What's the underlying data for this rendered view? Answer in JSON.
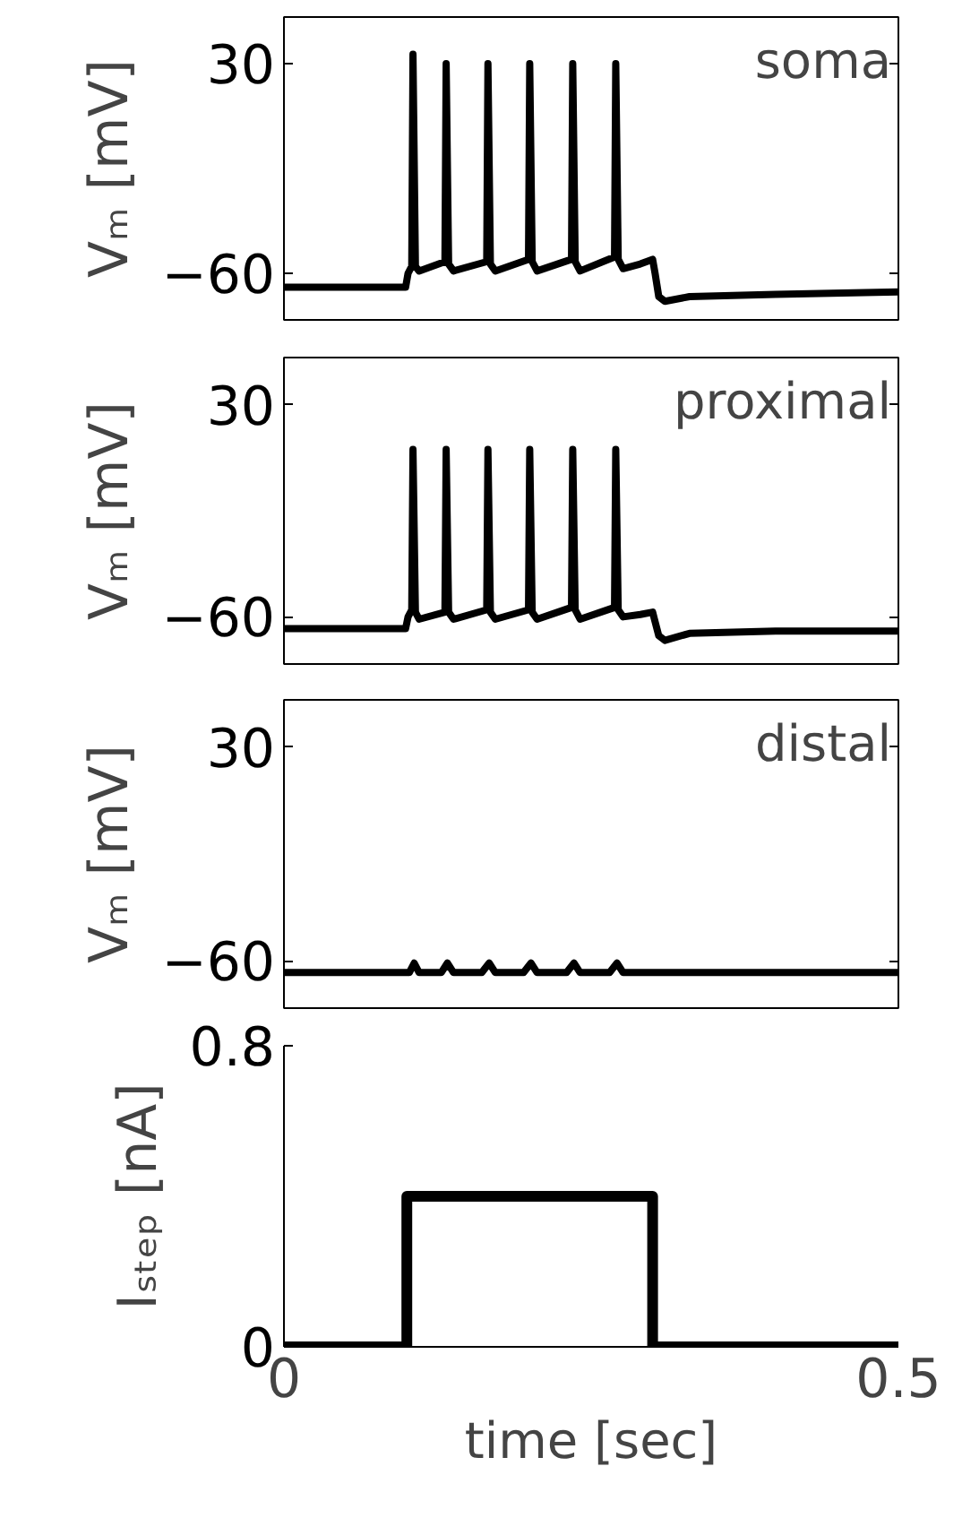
{
  "chart_data": [
    {
      "type": "line",
      "ylabel": "Vₘ [mV]",
      "annotations": [
        "soma"
      ],
      "xlim": [
        0,
        0.5
      ],
      "ylim": [
        -80,
        50
      ],
      "yticks": [
        -60,
        30
      ],
      "tick_labels": "y",
      "x": [
        0,
        0.099,
        0.101,
        0.104,
        0.105,
        0.107,
        0.11,
        0.131,
        0.132,
        0.134,
        0.138,
        0.165,
        0.166,
        0.168,
        0.172,
        0.199,
        0.2,
        0.202,
        0.206,
        0.234,
        0.235,
        0.237,
        0.241,
        0.269,
        0.27,
        0.272,
        0.276,
        0.29,
        0.3,
        0.302,
        0.305,
        0.31,
        0.33,
        0.4,
        0.5
      ],
      "series": [
        {
          "color": "#000000",
          "values": [
            -66,
            -66,
            -60,
            -57,
            34,
            -57,
            -59,
            -55,
            30,
            -56,
            -59,
            -55,
            30,
            -56,
            -59,
            -54,
            30,
            -55,
            -59,
            -54,
            30,
            -55,
            -59,
            -53,
            30,
            -54,
            -58,
            -56,
            -54,
            -60,
            -70,
            -72,
            -70,
            -69,
            -68
          ]
        }
      ]
    },
    {
      "type": "line",
      "ylabel": "Vₘ [mV]",
      "annotations": [
        "proximal"
      ],
      "xlim": [
        0,
        0.5
      ],
      "ylim": [
        -80,
        50
      ],
      "yticks": [
        -60,
        30
      ],
      "tick_labels": "y",
      "x": [
        0,
        0.099,
        0.101,
        0.104,
        0.105,
        0.107,
        0.11,
        0.131,
        0.132,
        0.134,
        0.138,
        0.165,
        0.166,
        0.168,
        0.172,
        0.199,
        0.2,
        0.202,
        0.206,
        0.234,
        0.235,
        0.237,
        0.241,
        0.269,
        0.27,
        0.272,
        0.276,
        0.29,
        0.3,
        0.302,
        0.305,
        0.31,
        0.33,
        0.4,
        0.5
      ],
      "series": [
        {
          "color": "#000000",
          "values": [
            -65,
            -65,
            -60,
            -57,
            11,
            -58,
            -61,
            -58,
            11,
            -58,
            -61,
            -57,
            11,
            -58,
            -61,
            -57,
            11,
            -58,
            -61,
            -56,
            11,
            -57,
            -61,
            -56,
            11,
            -57,
            -60,
            -59,
            -58,
            -62,
            -68,
            -70,
            -67,
            -66,
            -66
          ]
        }
      ]
    },
    {
      "type": "line",
      "ylabel": "Vₘ [mV]",
      "annotations": [
        "distal"
      ],
      "xlim": [
        0,
        0.5
      ],
      "ylim": [
        -80,
        50
      ],
      "yticks": [
        -60,
        30
      ],
      "tick_labels": "y",
      "x": [
        0,
        0.102,
        0.106,
        0.11,
        0.128,
        0.133,
        0.138,
        0.161,
        0.167,
        0.172,
        0.195,
        0.201,
        0.206,
        0.23,
        0.236,
        0.241,
        0.265,
        0.271,
        0.276,
        0.5
      ],
      "series": [
        {
          "color": "#000000",
          "values": [
            -65,
            -65,
            -61,
            -65,
            -65,
            -61,
            -65,
            -65,
            -61,
            -65,
            -65,
            -61,
            -65,
            -65,
            -61,
            -65,
            -65,
            -61,
            -65,
            -65
          ]
        }
      ]
    },
    {
      "type": "line",
      "ylabel": "Iₛₜₑₚ [nA]",
      "xlabel": "time [sec]",
      "xlim": [
        0,
        0.5
      ],
      "xticks": [
        0,
        0.5
      ],
      "ylim": [
        0,
        0.8
      ],
      "yticks": [
        0,
        0.8
      ],
      "x": [
        0,
        0.1,
        0.1,
        0.3,
        0.3,
        0.5
      ],
      "series": [
        {
          "color": "#000000",
          "values": [
            0,
            0,
            0.4,
            0.4,
            0,
            0
          ]
        }
      ]
    }
  ]
}
